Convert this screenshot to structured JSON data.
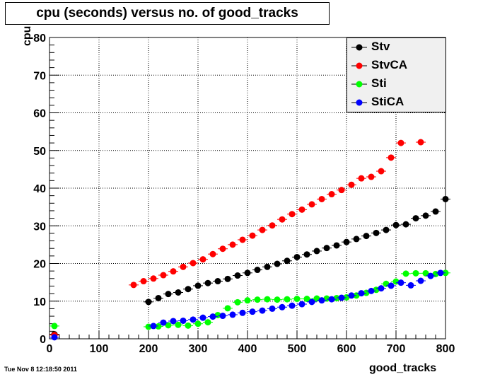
{
  "chart_data": {
    "type": "scatter",
    "title": "cpu (seconds) versus no. of good_tracks",
    "xlabel": "good_tracks",
    "ylabel": "cpu",
    "xlim": [
      0,
      800
    ],
    "ylim": [
      0,
      80
    ],
    "xticks": [
      0,
      100,
      200,
      300,
      400,
      500,
      600,
      700,
      800
    ],
    "yticks": [
      0,
      10,
      20,
      30,
      40,
      50,
      60,
      70,
      80
    ],
    "grid": true,
    "legend_position": "top-right",
    "series": [
      {
        "name": "Stv",
        "color": "#000000",
        "points": [
          [
            10,
            1.2
          ],
          [
            200,
            9.8
          ],
          [
            220,
            10.8
          ],
          [
            240,
            11.9
          ],
          [
            260,
            12.3
          ],
          [
            280,
            13.2
          ],
          [
            300,
            14.1
          ],
          [
            320,
            14.8
          ],
          [
            340,
            15.3
          ],
          [
            360,
            15.9
          ],
          [
            380,
            16.8
          ],
          [
            400,
            17.5
          ],
          [
            420,
            18.3
          ],
          [
            440,
            19.1
          ],
          [
            460,
            19.9
          ],
          [
            480,
            20.7
          ],
          [
            500,
            21.7
          ],
          [
            520,
            22.4
          ],
          [
            540,
            23.3
          ],
          [
            560,
            24.1
          ],
          [
            580,
            24.8
          ],
          [
            600,
            25.7
          ],
          [
            620,
            26.5
          ],
          [
            640,
            27.3
          ],
          [
            660,
            28.1
          ],
          [
            680,
            28.9
          ],
          [
            700,
            30.2
          ],
          [
            720,
            30.4
          ],
          [
            740,
            32.0
          ],
          [
            760,
            32.7
          ],
          [
            780,
            33.8
          ],
          [
            800,
            37.1
          ]
        ]
      },
      {
        "name": "StvCA",
        "color": "#ff0000",
        "points": [
          [
            10,
            1.0
          ],
          [
            170,
            14.3
          ],
          [
            190,
            15.3
          ],
          [
            210,
            16.0
          ],
          [
            230,
            16.9
          ],
          [
            250,
            17.9
          ],
          [
            270,
            19.1
          ],
          [
            290,
            20.1
          ],
          [
            310,
            21.1
          ],
          [
            330,
            22.5
          ],
          [
            350,
            23.9
          ],
          [
            370,
            25.0
          ],
          [
            390,
            26.3
          ],
          [
            410,
            27.4
          ],
          [
            430,
            28.9
          ],
          [
            450,
            30.1
          ],
          [
            470,
            31.7
          ],
          [
            490,
            33.1
          ],
          [
            510,
            34.3
          ],
          [
            530,
            35.7
          ],
          [
            550,
            37.1
          ],
          [
            570,
            38.4
          ],
          [
            590,
            39.5
          ],
          [
            610,
            40.9
          ],
          [
            630,
            42.6
          ],
          [
            650,
            43.0
          ],
          [
            670,
            44.5
          ],
          [
            690,
            48.1
          ],
          [
            710,
            52.0
          ],
          [
            750,
            52.2
          ]
        ]
      },
      {
        "name": "Sti",
        "color": "#00ff00",
        "points": [
          [
            10,
            3.4
          ],
          [
            200,
            3.2
          ],
          [
            220,
            3.3
          ],
          [
            240,
            3.6
          ],
          [
            260,
            3.7
          ],
          [
            280,
            3.5
          ],
          [
            300,
            4.0
          ],
          [
            320,
            4.4
          ],
          [
            340,
            6.3
          ],
          [
            360,
            8.1
          ],
          [
            380,
            9.7
          ],
          [
            400,
            10.2
          ],
          [
            420,
            10.4
          ],
          [
            440,
            10.5
          ],
          [
            460,
            10.4
          ],
          [
            480,
            10.5
          ],
          [
            500,
            10.6
          ],
          [
            520,
            10.6
          ],
          [
            540,
            10.7
          ],
          [
            560,
            10.7
          ],
          [
            580,
            10.8
          ],
          [
            600,
            11.0
          ],
          [
            620,
            11.5
          ],
          [
            640,
            12.2
          ],
          [
            660,
            13.0
          ],
          [
            680,
            14.6
          ],
          [
            700,
            15.2
          ],
          [
            720,
            17.3
          ],
          [
            740,
            17.4
          ],
          [
            760,
            17.4
          ],
          [
            780,
            17.2
          ],
          [
            800,
            17.5
          ]
        ]
      },
      {
        "name": "StiCA",
        "color": "#0000ff",
        "points": [
          [
            10,
            0.4
          ],
          [
            210,
            3.4
          ],
          [
            230,
            4.3
          ],
          [
            250,
            4.7
          ],
          [
            270,
            4.8
          ],
          [
            290,
            5.1
          ],
          [
            310,
            5.6
          ],
          [
            330,
            5.9
          ],
          [
            350,
            6.1
          ],
          [
            370,
            6.4
          ],
          [
            390,
            6.9
          ],
          [
            410,
            7.2
          ],
          [
            430,
            7.5
          ],
          [
            450,
            8.0
          ],
          [
            470,
            8.4
          ],
          [
            490,
            8.8
          ],
          [
            510,
            9.2
          ],
          [
            530,
            9.8
          ],
          [
            550,
            10.2
          ],
          [
            570,
            10.5
          ],
          [
            590,
            10.9
          ],
          [
            610,
            11.5
          ],
          [
            630,
            12.1
          ],
          [
            650,
            12.7
          ],
          [
            670,
            13.4
          ],
          [
            690,
            14.1
          ],
          [
            710,
            14.9
          ],
          [
            730,
            14.2
          ],
          [
            750,
            15.4
          ],
          [
            770,
            16.7
          ],
          [
            790,
            17.5
          ]
        ]
      }
    ]
  },
  "timestamp": "Tue Nov  8 12:18:50 2011"
}
